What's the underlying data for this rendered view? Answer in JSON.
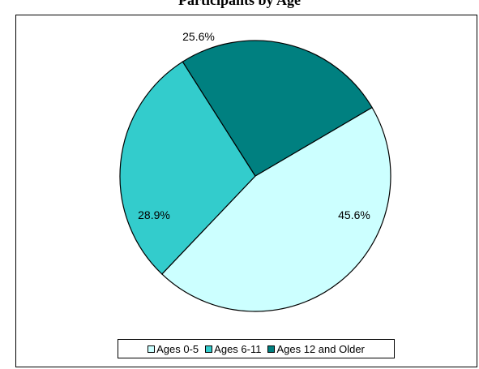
{
  "chart_data": {
    "type": "pie",
    "title": "Participants by Age",
    "categories": [
      "Ages 0-5",
      "Ages 6-11",
      "Ages 12 and Older"
    ],
    "values": [
      45.6,
      28.9,
      25.6
    ],
    "labels": [
      "45.6%",
      "28.9%",
      "25.6%"
    ],
    "colors": [
      "#ccffff",
      "#33cccc",
      "#008080"
    ],
    "legend_position": "bottom"
  }
}
